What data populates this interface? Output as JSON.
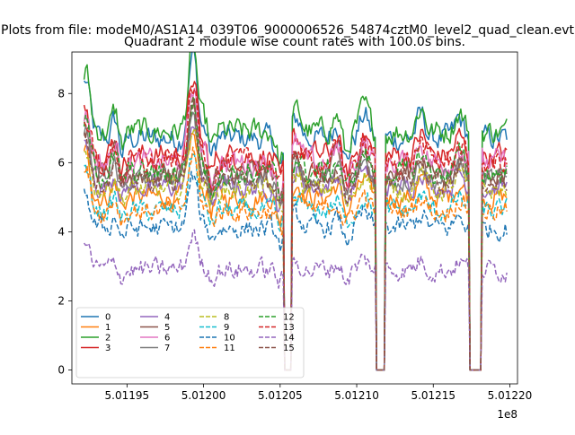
{
  "chart_data": {
    "type": "line",
    "suptitle": "Plots from file: modeM0/AS1A14_039T06_9000006526_54874cztM0_level2_quad_clean.evt",
    "title": "Quadrant 2 module wise count rates with 100.0s bins.",
    "xlabel": "",
    "ylabel": "",
    "x_offset_label": "1e8",
    "xlim": [
      501191400,
      501220500
    ],
    "ylim": [
      -0.4,
      9.2
    ],
    "x_range": [
      501192200,
      501219800
    ],
    "x_ticks": [
      501195000,
      501200000,
      501205000,
      501210000,
      501215000,
      501220000
    ],
    "x_tick_labels": [
      "5.01195",
      "5.01200",
      "5.01205",
      "5.01210",
      "5.01215",
      "5.01220"
    ],
    "y_ticks": [
      0,
      2,
      4,
      6,
      8
    ],
    "y_tick_labels": [
      "0",
      "2",
      "4",
      "6",
      "8"
    ],
    "gaps": [
      [
        501205300,
        501205700
      ],
      [
        501211300,
        501211800
      ],
      [
        501217400,
        501218100
      ]
    ],
    "bumps": [
      [
        501192300,
        1.5
      ],
      [
        501194400,
        0.8
      ],
      [
        501199300,
        2.2
      ],
      [
        501200400,
        0.6
      ],
      [
        501206100,
        0.5
      ],
      [
        501208700,
        0.4
      ],
      [
        501210500,
        0.6
      ],
      [
        501214200,
        0.6
      ],
      [
        501216700,
        0.5
      ]
    ],
    "dips": [
      [
        501194600,
        0.9
      ],
      [
        501200500,
        1.0
      ],
      [
        501205000,
        0.8
      ],
      [
        501209300,
        0.6
      ]
    ],
    "series": [
      {
        "name": "0",
        "color": "#1f77b4",
        "dash": "solid",
        "base": 6.7,
        "noise": 0.3
      },
      {
        "name": "1",
        "color": "#ff7f0e",
        "dash": "solid",
        "base": 5.0,
        "noise": 0.25
      },
      {
        "name": "2",
        "color": "#2ca02c",
        "dash": "solid",
        "base": 6.9,
        "noise": 0.3
      },
      {
        "name": "3",
        "color": "#d62728",
        "dash": "solid",
        "base": 6.2,
        "noise": 0.3
      },
      {
        "name": "4",
        "color": "#9467bd",
        "dash": "solid",
        "base": 5.3,
        "noise": 0.25
      },
      {
        "name": "5",
        "color": "#8c564b",
        "dash": "solid",
        "base": 5.7,
        "noise": 0.3
      },
      {
        "name": "6",
        "color": "#e377c2",
        "dash": "solid",
        "base": 6.0,
        "noise": 0.3
      },
      {
        "name": "7",
        "color": "#7f7f7f",
        "dash": "solid",
        "base": 5.5,
        "noise": 0.25
      },
      {
        "name": "8",
        "color": "#bcbd22",
        "dash": "dashed",
        "base": 5.2,
        "noise": 0.25
      },
      {
        "name": "9",
        "color": "#17becf",
        "dash": "dashed",
        "base": 4.6,
        "noise": 0.25
      },
      {
        "name": "10",
        "color": "#1f77b4",
        "dash": "dashed",
        "base": 4.1,
        "noise": 0.25
      },
      {
        "name": "11",
        "color": "#ff7f0e",
        "dash": "dashed",
        "base": 4.6,
        "noise": 0.25
      },
      {
        "name": "12",
        "color": "#2ca02c",
        "dash": "dashed",
        "base": 5.7,
        "noise": 0.3
      },
      {
        "name": "13",
        "color": "#d62728",
        "dash": "dashed",
        "base": 6.0,
        "noise": 0.3
      },
      {
        "name": "14",
        "color": "#9467bd",
        "dash": "dashed",
        "base": 2.9,
        "noise": 0.25
      },
      {
        "name": "15",
        "color": "#8c564b",
        "dash": "dashed",
        "base": 5.5,
        "noise": 0.25
      }
    ],
    "legend_location": "lower-left",
    "legend_columns": 4
  }
}
